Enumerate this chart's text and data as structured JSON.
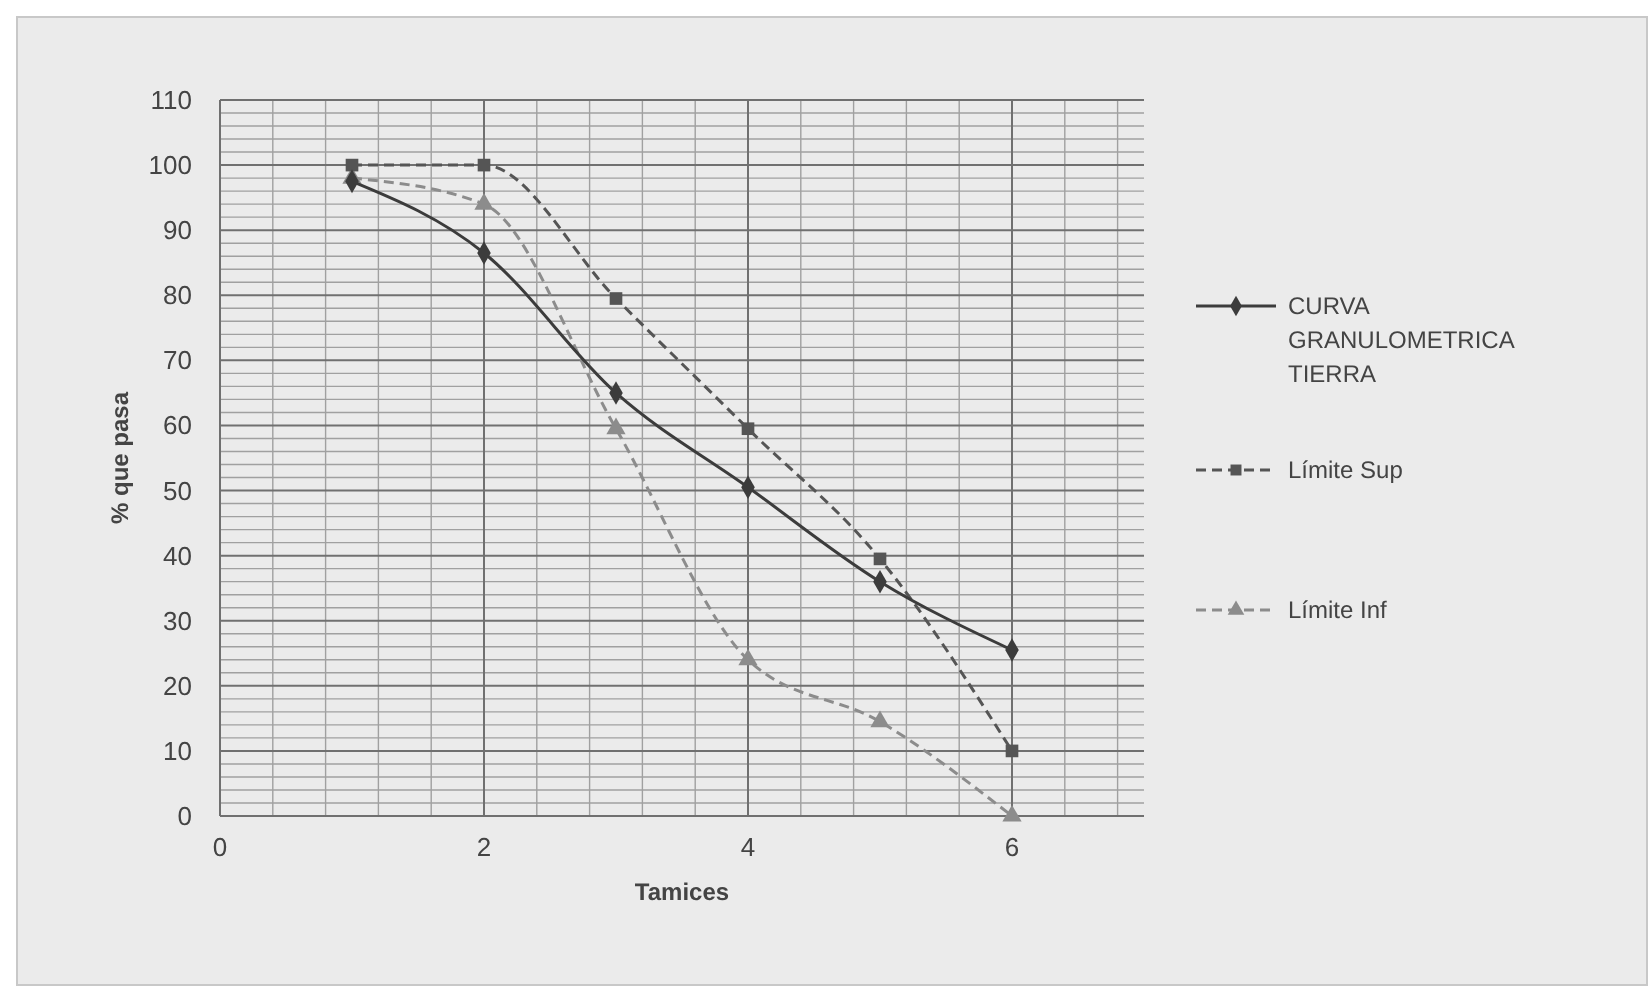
{
  "chart_data": {
    "type": "line",
    "xlabel": "Tamices",
    "ylabel": "% que pasa",
    "x": [
      1,
      2,
      3,
      4,
      5,
      6
    ],
    "xlim": [
      0,
      7
    ],
    "xticks": [
      0,
      2,
      4,
      6
    ],
    "ylim": [
      0,
      110
    ],
    "yticks": [
      0,
      10,
      20,
      30,
      40,
      50,
      60,
      70,
      80,
      90,
      100,
      110
    ],
    "grid": true,
    "legend": "right",
    "series": [
      {
        "name": "CURVA GRANULOMETRICA TIERRA",
        "color": "#3c3c3c",
        "marker": "diamond",
        "line_style": "solid",
        "values": [
          97.5,
          86.5,
          65,
          50.5,
          36,
          25.5
        ]
      },
      {
        "name": "Límite Sup",
        "color": "#555555",
        "marker": "square",
        "line_style": "dashed",
        "values": [
          100,
          100,
          79.5,
          59.5,
          39.5,
          10
        ]
      },
      {
        "name": "Límite Inf",
        "color": "#8c8c8c",
        "marker": "triangle",
        "line_style": "dashed",
        "values": [
          98,
          94,
          59.5,
          24,
          14.5,
          0
        ]
      }
    ]
  }
}
